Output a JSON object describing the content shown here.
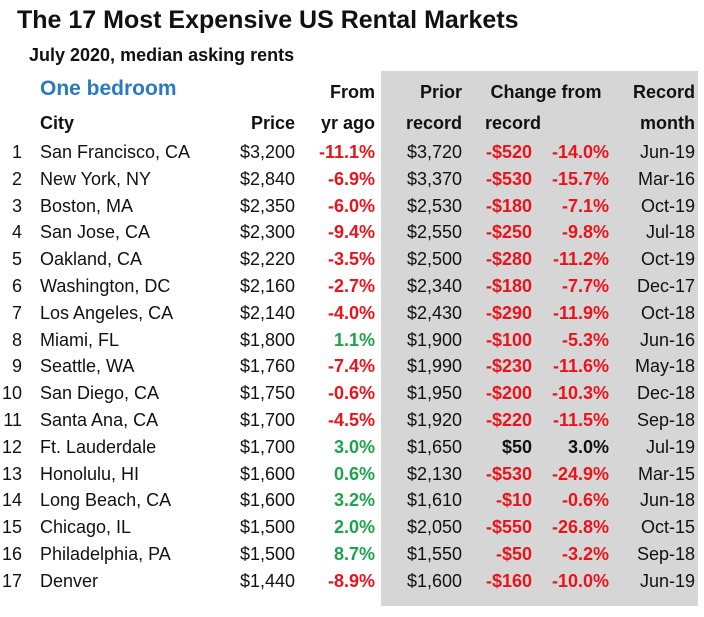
{
  "title": "The 17 Most Expensive US Rental Markets",
  "subtitle": "July 2020, median asking rents",
  "headers": {
    "section": "One bedroom",
    "city": "City",
    "price": "Price",
    "from_1": "From",
    "from_2": "yr ago",
    "prior_1": "Prior",
    "prior_2": "record",
    "change_1": "Change from",
    "change_2": "record",
    "record_1": "Record",
    "record_2": "month"
  },
  "rows": [
    {
      "rank": "1",
      "city": "San Francisco, CA",
      "price": "$3,200",
      "yr_change": "-11.1%",
      "yr_color": "red",
      "prior": "$3,720",
      "chg_amt": "-$520",
      "chg_pct": "-14.0%",
      "chg_color": "red",
      "month": "Jun-19"
    },
    {
      "rank": "2",
      "city": "New York, NY",
      "price": "$2,840",
      "yr_change": "-6.9%",
      "yr_color": "red",
      "prior": "$3,370",
      "chg_amt": "-$530",
      "chg_pct": "-15.7%",
      "chg_color": "red",
      "month": "Mar-16"
    },
    {
      "rank": "3",
      "city": "Boston, MA",
      "price": "$2,350",
      "yr_change": "-6.0%",
      "yr_color": "red",
      "prior": "$2,530",
      "chg_amt": "-$180",
      "chg_pct": "-7.1%",
      "chg_color": "red",
      "month": "Oct-19"
    },
    {
      "rank": "4",
      "city": "San Jose, CA",
      "price": "$2,300",
      "yr_change": "-9.4%",
      "yr_color": "red",
      "prior": "$2,550",
      "chg_amt": "-$250",
      "chg_pct": "-9.8%",
      "chg_color": "red",
      "month": "Jul-18"
    },
    {
      "rank": "5",
      "city": "Oakland, CA",
      "price": "$2,220",
      "yr_change": "-3.5%",
      "yr_color": "red",
      "prior": "$2,500",
      "chg_amt": "-$280",
      "chg_pct": "-11.2%",
      "chg_color": "red",
      "month": "Oct-19"
    },
    {
      "rank": "6",
      "city": "Washington, DC",
      "price": "$2,160",
      "yr_change": "-2.7%",
      "yr_color": "red",
      "prior": "$2,340",
      "chg_amt": "-$180",
      "chg_pct": "-7.7%",
      "chg_color": "red",
      "month": "Dec-17"
    },
    {
      "rank": "7",
      "city": "Los Angeles, CA",
      "price": "$2,140",
      "yr_change": "-4.0%",
      "yr_color": "red",
      "prior": "$2,430",
      "chg_amt": "-$290",
      "chg_pct": "-11.9%",
      "chg_color": "red",
      "month": "Oct-18"
    },
    {
      "rank": "8",
      "city": "Miami, FL",
      "price": "$1,800",
      "yr_change": "1.1%",
      "yr_color": "green",
      "prior": "$1,900",
      "chg_amt": "-$100",
      "chg_pct": "-5.3%",
      "chg_color": "red",
      "month": "Jun-16"
    },
    {
      "rank": "9",
      "city": "Seattle, WA",
      "price": "$1,760",
      "yr_change": "-7.4%",
      "yr_color": "red",
      "prior": "$1,990",
      "chg_amt": "-$230",
      "chg_pct": "-11.6%",
      "chg_color": "red",
      "month": "May-18"
    },
    {
      "rank": "10",
      "city": "San Diego, CA",
      "price": "$1,750",
      "yr_change": "-0.6%",
      "yr_color": "red",
      "prior": "$1,950",
      "chg_amt": "-$200",
      "chg_pct": "-10.3%",
      "chg_color": "red",
      "month": "Dec-18"
    },
    {
      "rank": "11",
      "city": "Santa Ana, CA",
      "price": "$1,700",
      "yr_change": "-4.5%",
      "yr_color": "red",
      "prior": "$1,920",
      "chg_amt": "-$220",
      "chg_pct": "-11.5%",
      "chg_color": "red",
      "month": "Sep-18"
    },
    {
      "rank": "12",
      "city": "Ft. Lauderdale",
      "price": "$1,700",
      "yr_change": "3.0%",
      "yr_color": "green",
      "prior": "$1,650",
      "chg_amt": "$50",
      "chg_pct": "3.0%",
      "chg_color": "black",
      "month": "Jul-19"
    },
    {
      "rank": "13",
      "city": "Honolulu, HI",
      "price": "$1,600",
      "yr_change": "0.6%",
      "yr_color": "green",
      "prior": "$2,130",
      "chg_amt": "-$530",
      "chg_pct": "-24.9%",
      "chg_color": "red",
      "month": "Mar-15"
    },
    {
      "rank": "14",
      "city": "Long Beach, CA",
      "price": "$1,600",
      "yr_change": "3.2%",
      "yr_color": "green",
      "prior": "$1,610",
      "chg_amt": "-$10",
      "chg_pct": "-0.6%",
      "chg_color": "red",
      "month": "Jun-18"
    },
    {
      "rank": "15",
      "city": "Chicago, IL",
      "price": "$1,500",
      "yr_change": "2.0%",
      "yr_color": "green",
      "prior": "$2,050",
      "chg_amt": "-$550",
      "chg_pct": "-26.8%",
      "chg_color": "red",
      "month": "Oct-15"
    },
    {
      "rank": "16",
      "city": "Philadelphia, PA",
      "price": "$1,500",
      "yr_change": "8.7%",
      "yr_color": "green",
      "prior": "$1,550",
      "chg_amt": "-$50",
      "chg_pct": "-3.2%",
      "chg_color": "red",
      "month": "Sep-18"
    },
    {
      "rank": "17",
      "city": "Denver",
      "price": "$1,440",
      "yr_change": "-8.9%",
      "yr_color": "red",
      "prior": "$1,600",
      "chg_amt": "-$160",
      "chg_pct": "-10.0%",
      "chg_color": "red",
      "month": "Jun-19"
    }
  ]
}
